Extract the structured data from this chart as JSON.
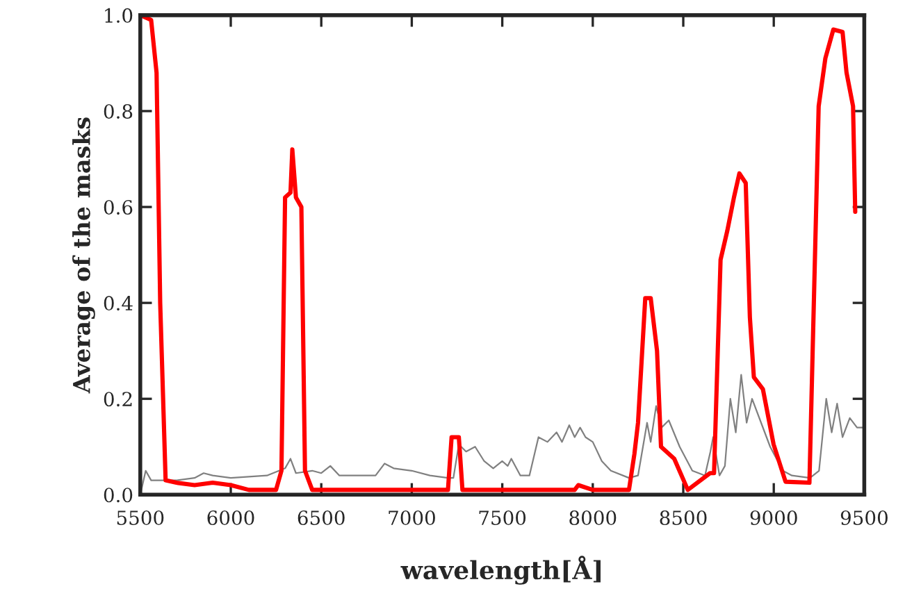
{
  "chart_data": {
    "type": "line",
    "xlabel": "wavelength[Å]",
    "ylabel": "Average of the masks",
    "xlim": [
      5500,
      9500
    ],
    "ylim": [
      0.0,
      1.0
    ],
    "xticks": [
      5500,
      6000,
      6500,
      7000,
      7500,
      8000,
      8500,
      9000,
      9500
    ],
    "yticks": [
      {
        "value": 0,
        "label": "0.0"
      },
      {
        "value": 0.2,
        "label": "0.2"
      },
      {
        "value": 0.4,
        "label": "0.4"
      },
      {
        "value": 0.6,
        "label": "0.6"
      },
      {
        "value": 0.8,
        "label": "0.8"
      },
      {
        "value": 1,
        "label": "1.0"
      }
    ],
    "grid": false,
    "marker": "none",
    "line_style": "solid",
    "series": [
      {
        "color": "#808080",
        "x": [
          5500,
          5530,
          5560,
          5700,
          5800,
          5850,
          5900,
          6000,
          6200,
          6300,
          6330,
          6360,
          6450,
          6500,
          6550,
          6600,
          6700,
          6800,
          6850,
          6900,
          7000,
          7100,
          7200,
          7230,
          7260,
          7300,
          7350,
          7400,
          7450,
          7500,
          7530,
          7550,
          7600,
          7650,
          7700,
          7750,
          7800,
          7830,
          7870,
          7900,
          7930,
          7960,
          8000,
          8050,
          8100,
          8200,
          8250,
          8300,
          8320,
          8350,
          8380,
          8420,
          8480,
          8550,
          8620,
          8650,
          8665,
          8700,
          8730,
          8760,
          8790,
          8820,
          8850,
          8880,
          8930,
          8980,
          9050,
          9100,
          9200,
          9250,
          9290,
          9320,
          9350,
          9380,
          9420,
          9460,
          9500
        ],
        "values": [
          0.0,
          0.05,
          0.03,
          0.03,
          0.035,
          0.045,
          0.04,
          0.035,
          0.04,
          0.055,
          0.075,
          0.045,
          0.05,
          0.045,
          0.06,
          0.04,
          0.04,
          0.04,
          0.065,
          0.055,
          0.05,
          0.04,
          0.035,
          0.035,
          0.105,
          0.09,
          0.1,
          0.07,
          0.055,
          0.07,
          0.06,
          0.075,
          0.04,
          0.04,
          0.12,
          0.11,
          0.13,
          0.11,
          0.145,
          0.12,
          0.14,
          0.12,
          0.11,
          0.07,
          0.05,
          0.035,
          0.04,
          0.15,
          0.11,
          0.185,
          0.14,
          0.155,
          0.1,
          0.05,
          0.04,
          0.09,
          0.12,
          0.04,
          0.06,
          0.2,
          0.13,
          0.25,
          0.15,
          0.2,
          0.15,
          0.1,
          0.05,
          0.04,
          0.035,
          0.05,
          0.2,
          0.13,
          0.19,
          0.12,
          0.16,
          0.14,
          0.14
        ]
      },
      {
        "color": "#ff0000",
        "x": [
          5500,
          5560,
          5590,
          5610,
          5640,
          5700,
          5800,
          5900,
          6000,
          6100,
          6250,
          6280,
          6300,
          6330,
          6340,
          6360,
          6390,
          6410,
          6450,
          7200,
          7220,
          7260,
          7280,
          7900,
          7920,
          8000,
          8200,
          8230,
          8250,
          8290,
          8320,
          8355,
          8377,
          8450,
          8525,
          8648,
          8670,
          8706,
          8743,
          8780,
          8810,
          8845,
          8868,
          8890,
          8940,
          8999,
          9065,
          9197,
          9248,
          9285,
          9329,
          9380,
          9402,
          9438,
          9450
        ],
        "values": [
          1.0,
          0.99,
          0.88,
          0.4,
          0.03,
          0.025,
          0.02,
          0.025,
          0.02,
          0.01,
          0.01,
          0.05,
          0.62,
          0.63,
          0.72,
          0.62,
          0.6,
          0.05,
          0.01,
          0.01,
          0.12,
          0.12,
          0.01,
          0.01,
          0.02,
          0.01,
          0.01,
          0.085,
          0.15,
          0.41,
          0.41,
          0.3,
          0.1,
          0.075,
          0.01,
          0.045,
          0.045,
          0.49,
          0.55,
          0.62,
          0.67,
          0.65,
          0.37,
          0.245,
          0.22,
          0.105,
          0.027,
          0.025,
          0.81,
          0.91,
          0.97,
          0.965,
          0.88,
          0.81,
          0.59
        ]
      }
    ]
  }
}
